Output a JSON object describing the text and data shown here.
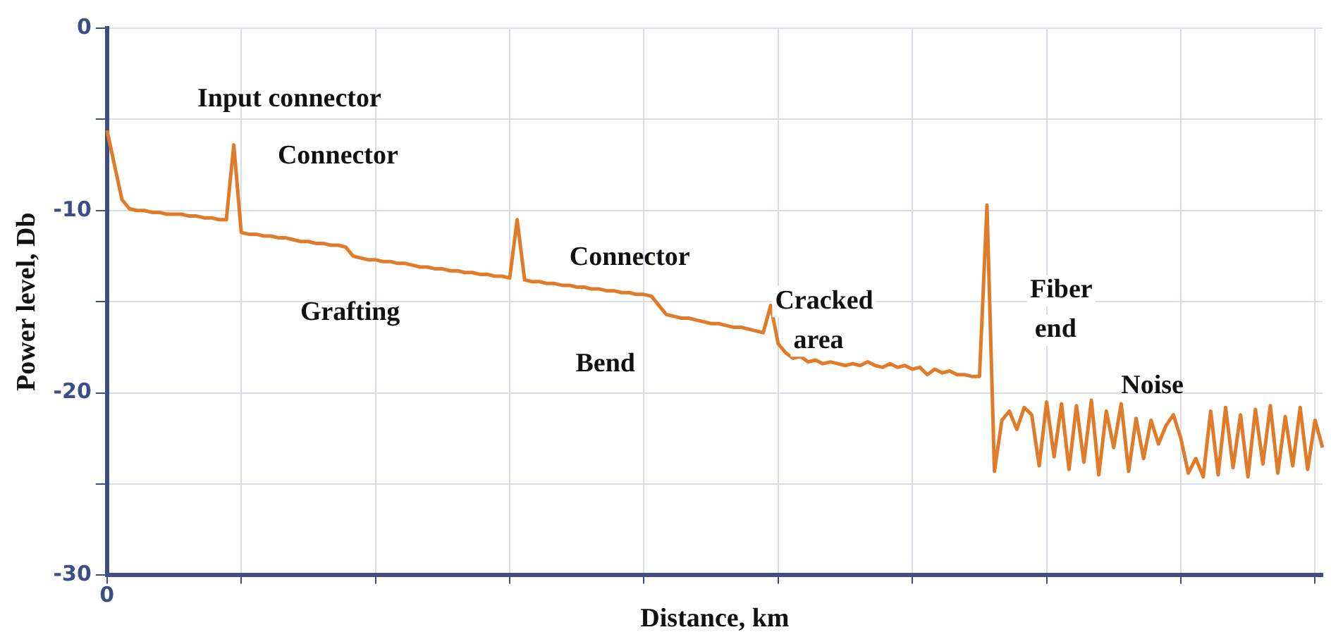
{
  "chart_data": {
    "type": "line",
    "xlabel": "Distance, km",
    "ylabel": "Power level, Db",
    "categories": [
      "0",
      null,
      null,
      null,
      null,
      null,
      null,
      null,
      null,
      null,
      null,
      null,
      null,
      null,
      null,
      null,
      null,
      null,
      null,
      null,
      null,
      null,
      null,
      null,
      null,
      null,
      null,
      null,
      null,
      null,
      null,
      null,
      null,
      null,
      null,
      null,
      null,
      null,
      null,
      null,
      null,
      null,
      null,
      null,
      null,
      null,
      null,
      null,
      null,
      null,
      null,
      null,
      null,
      null,
      null,
      null,
      null,
      null,
      null,
      null,
      null,
      null,
      null,
      null,
      null,
      null,
      null,
      null,
      null,
      null,
      null,
      null,
      null,
      null,
      null,
      null,
      null,
      null,
      null,
      null,
      null,
      null,
      null,
      null,
      null,
      null,
      null,
      null,
      null,
      null,
      null,
      null,
      null,
      null,
      null,
      null,
      null,
      null,
      null,
      null,
      null,
      null,
      null,
      null,
      null,
      null,
      null,
      null,
      null,
      null,
      null,
      null,
      null,
      null,
      null,
      null,
      null,
      null,
      null,
      null,
      null,
      null,
      null,
      null,
      null,
      null,
      null,
      null,
      null,
      null,
      null,
      null,
      null,
      null,
      null,
      null,
      null,
      null,
      null,
      null,
      null,
      null,
      null,
      null,
      null,
      null,
      null,
      null,
      null,
      null,
      null,
      null,
      null,
      null,
      null,
      null,
      null,
      null,
      null,
      null,
      null,
      null,
      null,
      null
    ],
    "series": [
      {
        "color": "#e07b2a",
        "values": [
          -5.6,
          -7.5,
          -9.4,
          -9.9,
          -10.0,
          -10.0,
          -10.1,
          -10.1,
          -10.2,
          -10.2,
          -10.2,
          -10.3,
          -10.3,
          -10.4,
          -10.4,
          -10.5,
          -10.5,
          -6.4,
          -11.2,
          -11.3,
          -11.3,
          -11.4,
          -11.4,
          -11.5,
          -11.5,
          -11.6,
          -11.7,
          -11.7,
          -11.8,
          -11.8,
          -11.9,
          -11.9,
          -12.0,
          -12.5,
          -12.6,
          -12.7,
          -12.7,
          -12.8,
          -12.8,
          -12.9,
          -12.9,
          -13.0,
          -13.1,
          -13.1,
          -13.2,
          -13.2,
          -13.3,
          -13.3,
          -13.4,
          -13.4,
          -13.5,
          -13.5,
          -13.6,
          -13.6,
          -13.7,
          -10.5,
          -13.8,
          -13.9,
          -13.9,
          -14.0,
          -14.0,
          -14.1,
          -14.1,
          -14.2,
          -14.2,
          -14.3,
          -14.3,
          -14.4,
          -14.4,
          -14.5,
          -14.5,
          -14.6,
          -14.6,
          -14.7,
          -15.2,
          -15.7,
          -15.8,
          -15.9,
          -15.9,
          -16.0,
          -16.1,
          -16.2,
          -16.2,
          -16.3,
          -16.4,
          -16.4,
          -16.5,
          -16.6,
          -16.7,
          -15.2,
          -17.3,
          -17.8,
          -18.1,
          -18.0,
          -18.3,
          -18.2,
          -18.4,
          -18.3,
          -18.4,
          -18.5,
          -18.4,
          -18.5,
          -18.3,
          -18.5,
          -18.6,
          -18.4,
          -18.6,
          -18.5,
          -18.7,
          -18.6,
          -19.0,
          -18.7,
          -18.9,
          -18.8,
          -19.0,
          -19.0,
          -19.1,
          -19.1,
          -9.7,
          -24.3,
          -21.5,
          -21.0,
          -22.0,
          -20.8,
          -21.2,
          -24.0,
          -20.5,
          -23.5,
          -20.6,
          -24.2,
          -20.7,
          -23.8,
          -20.4,
          -24.5,
          -21.0,
          -23.0,
          -20.6,
          -24.3,
          -21.4,
          -23.6,
          -21.5,
          -22.8,
          -21.8,
          -21.2,
          -22.5,
          -24.4,
          -23.6,
          -24.6,
          -21.0,
          -24.5,
          -20.8,
          -24.1,
          -21.2,
          -24.6,
          -20.9,
          -23.9,
          -20.7,
          -24.4,
          -21.3,
          -24.0,
          -20.8,
          -24.2,
          -21.5,
          -23.0
        ]
      }
    ],
    "ylim": [
      -30,
      0
    ],
    "yticks": [
      -30,
      {
        "value": -25,
        "label": null
      },
      -20,
      {
        "value": -15,
        "label": null
      },
      -10,
      {
        "value": -5,
        "label": null
      },
      0
    ],
    "annotations": [
      "Input connector",
      "Connector",
      "Grafting",
      "Connector",
      "Bend",
      "Cracked area",
      "Fiber end",
      "Noise"
    ],
    "grid": true,
    "legend": false,
    "marker": "none",
    "line_style": "solid"
  }
}
